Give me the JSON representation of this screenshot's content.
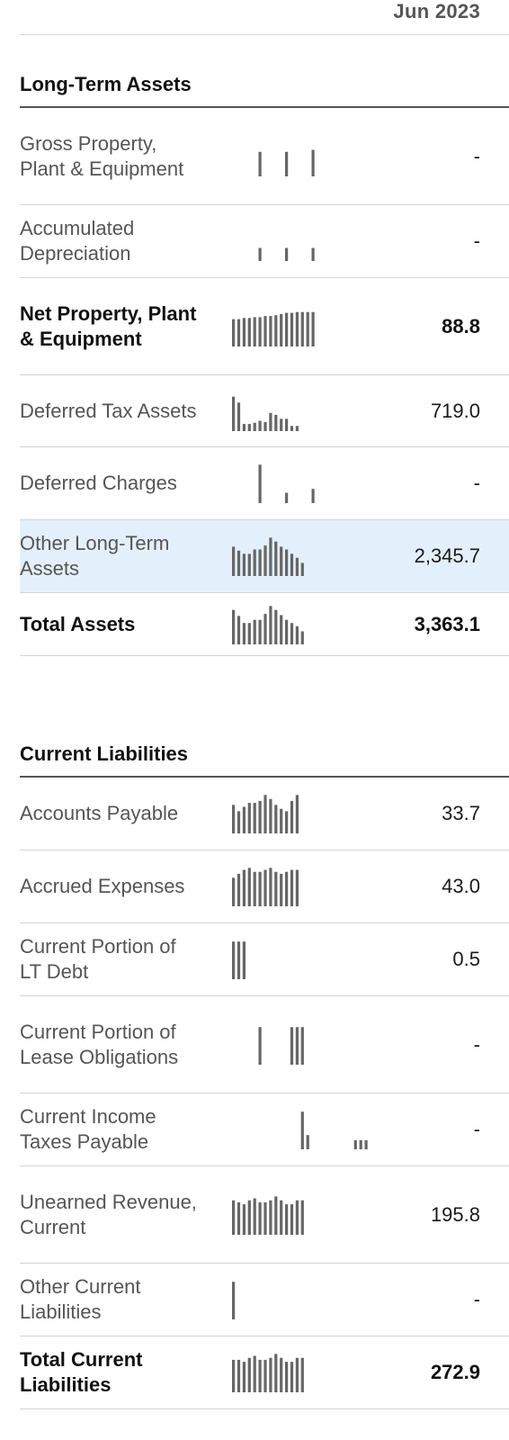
{
  "table": {
    "column_header": "Jun 2023",
    "sections": [
      {
        "title": "Long-Term Assets",
        "rows": [
          {
            "label": "Gross Property, Plant & Equipment",
            "value": "-",
            "bold": false,
            "highlight": false,
            "spark": [
              0,
              0,
              0,
              0,
              0,
              0.62,
              0,
              0,
              0,
              0,
              0.62,
              0,
              0,
              0,
              0,
              0.67
            ]
          },
          {
            "label": "Accumulated Depreciation",
            "value": "-",
            "bold": false,
            "highlight": false,
            "spark": [
              0,
              0,
              0,
              0,
              0,
              0.33,
              0,
              0,
              0,
              0,
              0.33,
              0,
              0,
              0,
              0,
              0.33
            ]
          },
          {
            "label": "Net Property, Plant & Equipment",
            "value": "88.8",
            "bold": true,
            "highlight": false,
            "spark": [
              0.69,
              0.69,
              0.72,
              0.72,
              0.74,
              0.74,
              0.77,
              0.77,
              0.79,
              0.82,
              0.85,
              0.85,
              0.87,
              0.87,
              0.87,
              0.87
            ]
          },
          {
            "label": "Deferred Tax Assets",
            "value": "719.0",
            "bold": false,
            "highlight": false,
            "spark": [
              0.87,
              0.72,
              0.18,
              0.18,
              0.21,
              0.26,
              0.23,
              0.46,
              0.41,
              0.31,
              0.31,
              0.13,
              0.13
            ]
          },
          {
            "label": "Deferred Charges",
            "value": "-",
            "bold": false,
            "highlight": false,
            "spark": [
              0,
              0,
              0,
              0,
              0,
              0.97,
              0,
              0,
              0,
              0,
              0.26,
              0,
              0,
              0,
              0,
              0.36
            ]
          },
          {
            "label": "Other Long-Term Assets",
            "value": "2,345.7",
            "bold": false,
            "highlight": false,
            "spark": [
              0.74,
              0.64,
              0.56,
              0.56,
              0.67,
              0.67,
              0.77,
              0.97,
              0.87,
              0.74,
              0.67,
              0.56,
              0.46,
              0.33
            ]
          },
          {
            "label": "Total Assets",
            "value": "3,363.1",
            "bold": true,
            "highlight": false,
            "spark": [
              0.87,
              0.72,
              0.54,
              0.54,
              0.62,
              0.62,
              0.77,
              0.97,
              0.87,
              0.74,
              0.62,
              0.54,
              0.46,
              0.33
            ]
          }
        ]
      },
      {
        "title": "Current Liabilities",
        "rows": [
          {
            "label": "Accounts Payable",
            "value": "33.7",
            "bold": false,
            "highlight": false,
            "spark": [
              0.72,
              0.56,
              0.67,
              0.77,
              0.77,
              0.82,
              0.97,
              0.87,
              0.72,
              0.62,
              0.56,
              0.82,
              0.97
            ]
          },
          {
            "label": "Accrued Expenses",
            "value": "43.0",
            "bold": false,
            "highlight": false,
            "spark": [
              0.72,
              0.82,
              0.92,
              0.97,
              0.87,
              0.87,
              0.92,
              0.97,
              0.87,
              0.82,
              0.87,
              0.92,
              0.92
            ]
          },
          {
            "label": "Current Portion of LT Debt",
            "value": "0.5",
            "bold": false,
            "highlight": false,
            "spark": [
              0.95,
              0.95,
              0.95
            ]
          },
          {
            "label": "Current Portion of Lease Obligations",
            "value": "-",
            "bold": false,
            "highlight": false,
            "spark": [
              0,
              0,
              0,
              0,
              0,
              0.95,
              0,
              0,
              0,
              0,
              0,
              0.95,
              0.95,
              0.95
            ]
          },
          {
            "label": "Current Income Taxes Payable",
            "value": "-",
            "bold": false,
            "highlight": false,
            "spark": [
              0,
              0,
              0,
              0,
              0,
              0,
              0,
              0,
              0,
              0,
              0,
              0,
              0,
              0.95,
              0.36,
              0,
              0,
              0,
              0,
              0,
              0,
              0,
              0,
              0.23,
              0.23,
              0.23
            ]
          },
          {
            "label": "Unearned Revenue, Current",
            "value": "195.8",
            "bold": false,
            "highlight": false,
            "spark": [
              0.87,
              0.82,
              0.77,
              0.87,
              0.92,
              0.82,
              0.82,
              0.87,
              0.97,
              0.87,
              0.77,
              0.77,
              0.87,
              0.87
            ]
          },
          {
            "label": "Other Current Liabilities",
            "value": "-",
            "bold": false,
            "highlight": false,
            "spark": [
              0.95
            ]
          },
          {
            "label": "Total Current Liabilities",
            "value": "272.9",
            "bold": true,
            "highlight": false,
            "spark": [
              0.82,
              0.82,
              0.77,
              0.87,
              0.92,
              0.82,
              0.82,
              0.87,
              0.97,
              0.87,
              0.77,
              0.77,
              0.87,
              0.87
            ]
          }
        ]
      }
    ]
  }
}
